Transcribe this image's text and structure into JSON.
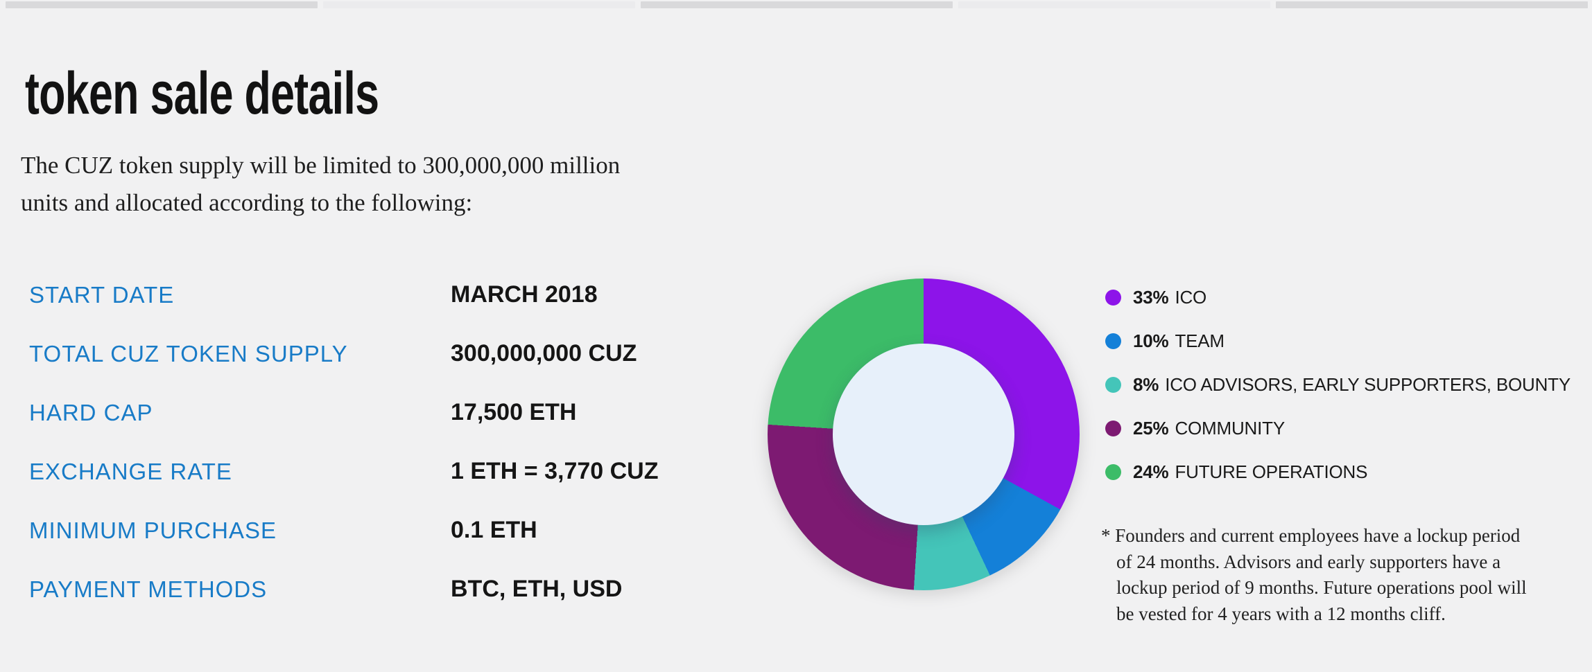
{
  "page": {
    "background": "#f1f1f2",
    "title": "token sale details",
    "intro_lines": [
      "The CUZ token supply will be limited to 300,000,000 million",
      "units and allocated according to the following:"
    ]
  },
  "carousel": {
    "segments": [
      {
        "color": "#d9d9db"
      },
      {
        "color": "#ebebed"
      },
      {
        "color": "#d9d9db"
      },
      {
        "color": "#ebebed"
      },
      {
        "color": "#d9d9db"
      }
    ]
  },
  "details": {
    "label_color": "#187bc7",
    "value_color": "#151515",
    "rows": [
      {
        "label": "START DATE",
        "value": "MARCH 2018"
      },
      {
        "label": "TOTAL CUZ TOKEN SUPPLY",
        "value": "300,000,000 CUZ"
      },
      {
        "label": "HARD CAP",
        "value": "17,500 ETH"
      },
      {
        "label": "EXCHANGE RATE",
        "value": "1 ETH = 3,770 CUZ"
      },
      {
        "label": "MINIMUM PURCHASE",
        "value": "0.1 ETH"
      },
      {
        "label": "PAYMENT METHODS",
        "value": "BTC, ETH, USD"
      }
    ]
  },
  "chart_data": {
    "type": "pie",
    "donut": true,
    "start_angle_deg": 0,
    "direction": "clockwise",
    "hole_color": "#e7f0fa",
    "legend_position": "right",
    "series": [
      {
        "label": "ICO",
        "value": 33,
        "pct_label": "33%",
        "color": "#8d14e9"
      },
      {
        "label": "TEAM",
        "value": 10,
        "pct_label": "10%",
        "color": "#1480d8"
      },
      {
        "label": "ICO ADVISORS, EARLY SUPPORTERS, BOUNTY",
        "value": 8,
        "pct_label": "8%",
        "color": "#44c5b9"
      },
      {
        "label": "COMMUNITY",
        "value": 25,
        "pct_label": "25%",
        "color": "#7d1a72"
      },
      {
        "label": "FUTURE OPERATIONS",
        "value": 24,
        "pct_label": "24%",
        "color": "#3cbc68"
      }
    ]
  },
  "footnote": {
    "lines": [
      "* Founders and current employees have a lockup period",
      "of 24 months. Advisors and early supporters have a",
      "lockup period of 9 months. Future operations pool will",
      "be vested for 4 years with a 12 months cliff."
    ]
  }
}
